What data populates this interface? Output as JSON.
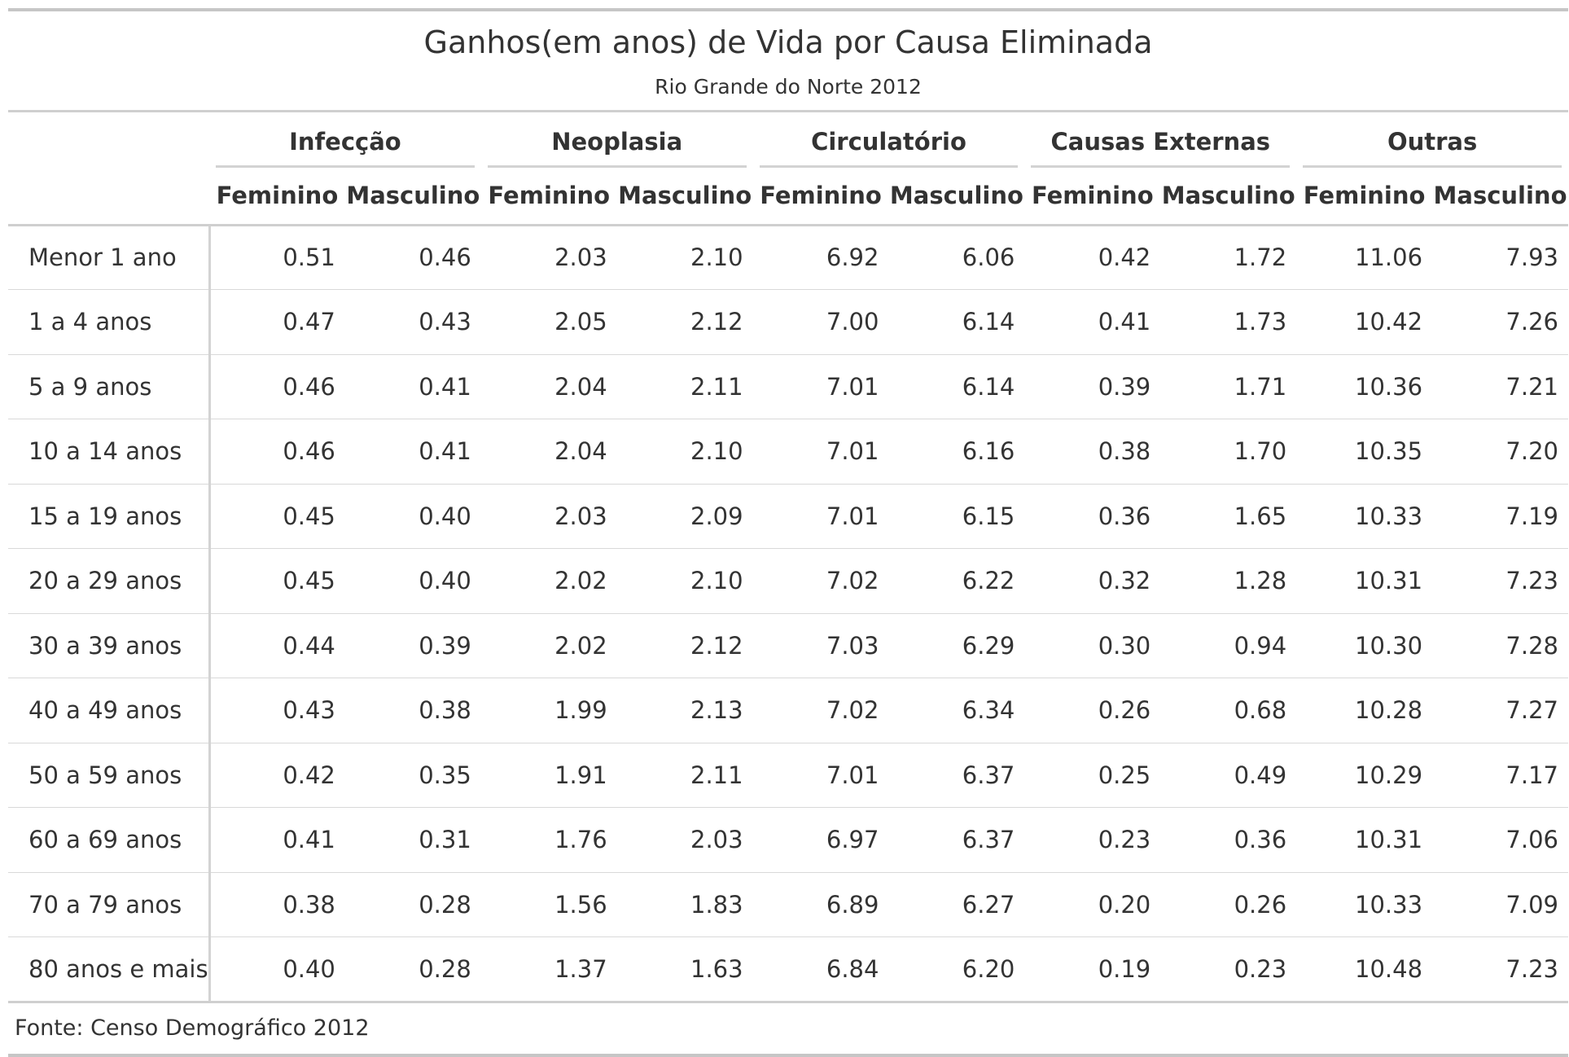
{
  "title": "Ganhos(em anos) de Vida por Causa Eliminada",
  "subtitle": "Rio Grande do Norte 2012",
  "spanners": [
    "Infecção",
    "Neoplasia",
    "Circulatório",
    "Causas Externas",
    "Outras"
  ],
  "sub_columns": [
    "Feminino",
    "Masculino",
    "Feminino",
    "Masculino",
    "Feminino",
    "Masculino",
    "Feminino",
    "Masculino",
    "Feminino",
    "Masculino"
  ],
  "rows": [
    {
      "label": "Menor 1 ano",
      "values": [
        "0.51",
        "0.46",
        "2.03",
        "2.10",
        "6.92",
        "6.06",
        "0.42",
        "1.72",
        "11.06",
        "7.93"
      ]
    },
    {
      "label": "1 a 4 anos",
      "values": [
        "0.47",
        "0.43",
        "2.05",
        "2.12",
        "7.00",
        "6.14",
        "0.41",
        "1.73",
        "10.42",
        "7.26"
      ]
    },
    {
      "label": "5 a 9 anos",
      "values": [
        "0.46",
        "0.41",
        "2.04",
        "2.11",
        "7.01",
        "6.14",
        "0.39",
        "1.71",
        "10.36",
        "7.21"
      ]
    },
    {
      "label": "10 a 14 anos",
      "values": [
        "0.46",
        "0.41",
        "2.04",
        "2.10",
        "7.01",
        "6.16",
        "0.38",
        "1.70",
        "10.35",
        "7.20"
      ]
    },
    {
      "label": "15 a 19 anos",
      "values": [
        "0.45",
        "0.40",
        "2.03",
        "2.09",
        "7.01",
        "6.15",
        "0.36",
        "1.65",
        "10.33",
        "7.19"
      ]
    },
    {
      "label": "20 a 29 anos",
      "values": [
        "0.45",
        "0.40",
        "2.02",
        "2.10",
        "7.02",
        "6.22",
        "0.32",
        "1.28",
        "10.31",
        "7.23"
      ]
    },
    {
      "label": "30 a 39 anos",
      "values": [
        "0.44",
        "0.39",
        "2.02",
        "2.12",
        "7.03",
        "6.29",
        "0.30",
        "0.94",
        "10.30",
        "7.28"
      ]
    },
    {
      "label": "40 a 49 anos",
      "values": [
        "0.43",
        "0.38",
        "1.99",
        "2.13",
        "7.02",
        "6.34",
        "0.26",
        "0.68",
        "10.28",
        "7.27"
      ]
    },
    {
      "label": "50 a 59 anos",
      "values": [
        "0.42",
        "0.35",
        "1.91",
        "2.11",
        "7.01",
        "6.37",
        "0.25",
        "0.49",
        "10.29",
        "7.17"
      ]
    },
    {
      "label": "60 a 69 anos",
      "values": [
        "0.41",
        "0.31",
        "1.76",
        "2.03",
        "6.97",
        "6.37",
        "0.23",
        "0.36",
        "10.31",
        "7.06"
      ]
    },
    {
      "label": "70 a 79 anos",
      "values": [
        "0.38",
        "0.28",
        "1.56",
        "1.83",
        "6.89",
        "6.27",
        "0.20",
        "0.26",
        "10.33",
        "7.09"
      ]
    },
    {
      "label": "80 anos e mais",
      "values": [
        "0.40",
        "0.28",
        "1.37",
        "1.63",
        "6.84",
        "6.20",
        "0.19",
        "0.23",
        "10.48",
        "7.23"
      ]
    }
  ],
  "source": "Fonte: Censo Demográfico 2012"
}
